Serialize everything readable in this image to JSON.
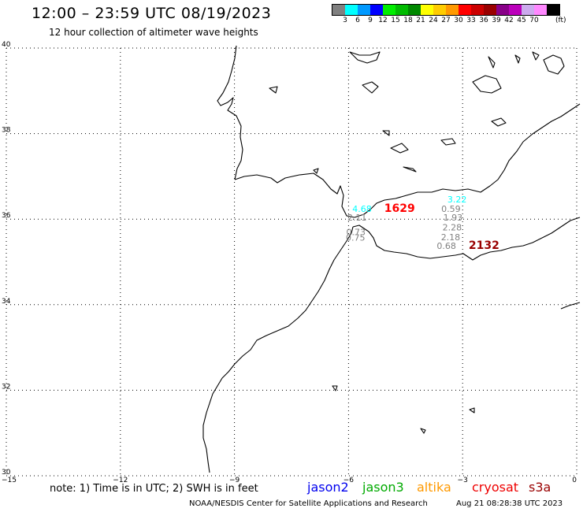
{
  "header": {
    "title": "12:00 – 23:59 UTC 08/19/2023",
    "subtitle": "12 hour collection of altimeter wave heights"
  },
  "colorbar": {
    "colors": [
      "#808080",
      "#00ffff",
      "#0099ff",
      "#0000ff",
      "#00ee00",
      "#00bb00",
      "#008800",
      "#ffff00",
      "#ffcc00",
      "#ff9900",
      "#ff0000",
      "#cc0000",
      "#990000",
      "#880088",
      "#bb00bb",
      "#ccaaee",
      "#ff88ff",
      "#000000"
    ],
    "labels": [
      "3",
      "6",
      "9",
      "12",
      "15",
      "18",
      "21",
      "24",
      "27",
      "30",
      "33",
      "36",
      "39",
      "42",
      "45",
      "70"
    ],
    "unit": "(ft)"
  },
  "map": {
    "lat_labels": [
      "40",
      "38",
      "36",
      "34",
      "32",
      "30"
    ],
    "lon_labels": [
      "−15",
      "−12",
      "−9",
      "−6",
      "−3",
      "0"
    ]
  },
  "observations": [
    {
      "text": "3.22",
      "lon": -3.4,
      "lat": 36.39,
      "color": "#00ffff",
      "bold": false
    },
    {
      "text": "4.68",
      "lon": -5.9,
      "lat": 36.17,
      "color": "#00ffff",
      "bold": false
    },
    {
      "text": "1629",
      "lon": -5.06,
      "lat": 36.17,
      "color": "#ff0000",
      "bold": true
    },
    {
      "text": "0.59",
      "lon": -3.56,
      "lat": 36.17,
      "color": "#808080",
      "bold": false
    },
    {
      "text": "2.11",
      "lon": -6.03,
      "lat": 35.97,
      "color": "#808080",
      "bold": false
    },
    {
      "text": "1.93",
      "lon": -3.51,
      "lat": 35.97,
      "color": "#808080",
      "bold": false
    },
    {
      "text": "2.28",
      "lon": -3.53,
      "lat": 35.74,
      "color": "#808080",
      "bold": false
    },
    {
      "text": "0.73",
      "lon": -6.06,
      "lat": 35.63,
      "color": "#808080",
      "bold": false
    },
    {
      "text": "0.75",
      "lon": -6.07,
      "lat": 35.5,
      "color": "#808080",
      "bold": false
    },
    {
      "text": "2.18",
      "lon": -3.57,
      "lat": 35.51,
      "color": "#808080",
      "bold": false
    },
    {
      "text": "0.68",
      "lon": -3.68,
      "lat": 35.3,
      "color": "#808080",
      "bold": false
    },
    {
      "text": "2132",
      "lon": -2.84,
      "lat": 35.3,
      "color": "#990000",
      "bold": true
    }
  ],
  "footer": {
    "note": "note: 1) Time is in UTC; 2) SWH is in feet",
    "credit": "NOAA/NESDIS Center for Satellite Applications and Research",
    "generated": "Aug 21 08:28:38 UTC 2023"
  },
  "legend": [
    {
      "label": "jason2",
      "color": "#0000ee"
    },
    {
      "label": "jason3",
      "color": "#00aa00"
    },
    {
      "label": "altika",
      "color": "#ff9900"
    },
    {
      "label": "cryosat",
      "color": "#ee0000"
    },
    {
      "label": "s3a",
      "color": "#990000"
    }
  ]
}
